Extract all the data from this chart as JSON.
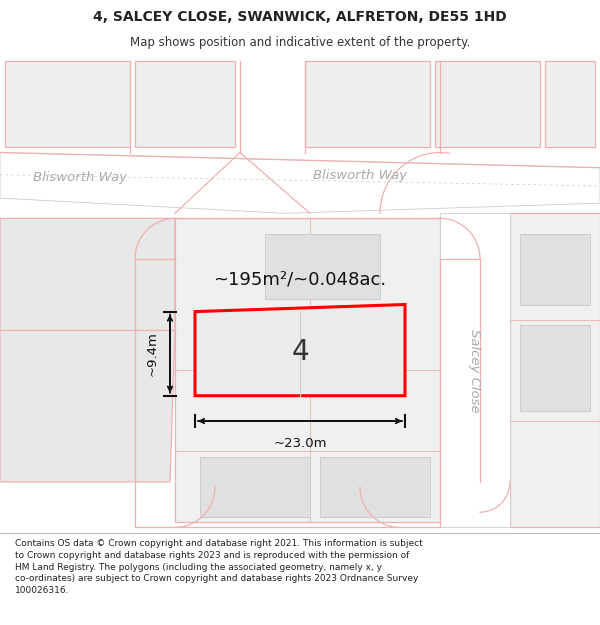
{
  "title": "4, SALCEY CLOSE, SWANWICK, ALFRETON, DE55 1HD",
  "subtitle": "Map shows position and indicative extent of the property.",
  "footer": "Contains OS data © Crown copyright and database right 2021. This information is subject to Crown copyright and database rights 2023 and is reproduced with the permission of HM Land Registry. The polygons (including the associated geometry, namely x, y co-ordinates) are subject to Crown copyright and database rights 2023 Ordnance Survey 100026316.",
  "background_color": "#ffffff",
  "plot_fill": "#e8e8e8",
  "highlight_fill": "#ebebeb",
  "highlight_stroke": "#ff0000",
  "road_color": "#ffffff",
  "road_line_color": "#cccccc",
  "plot_line_color": "#f0b0b0",
  "gray_line_color": "#cccccc",
  "area_label": "~195m²/~0.048ac.",
  "plot_number": "4",
  "width_label": "~23.0m",
  "height_label": "~9.4m",
  "road1_label": "Blisworth Way",
  "road2_label": "Blisworth Way",
  "road3_label": "Salcey Close"
}
